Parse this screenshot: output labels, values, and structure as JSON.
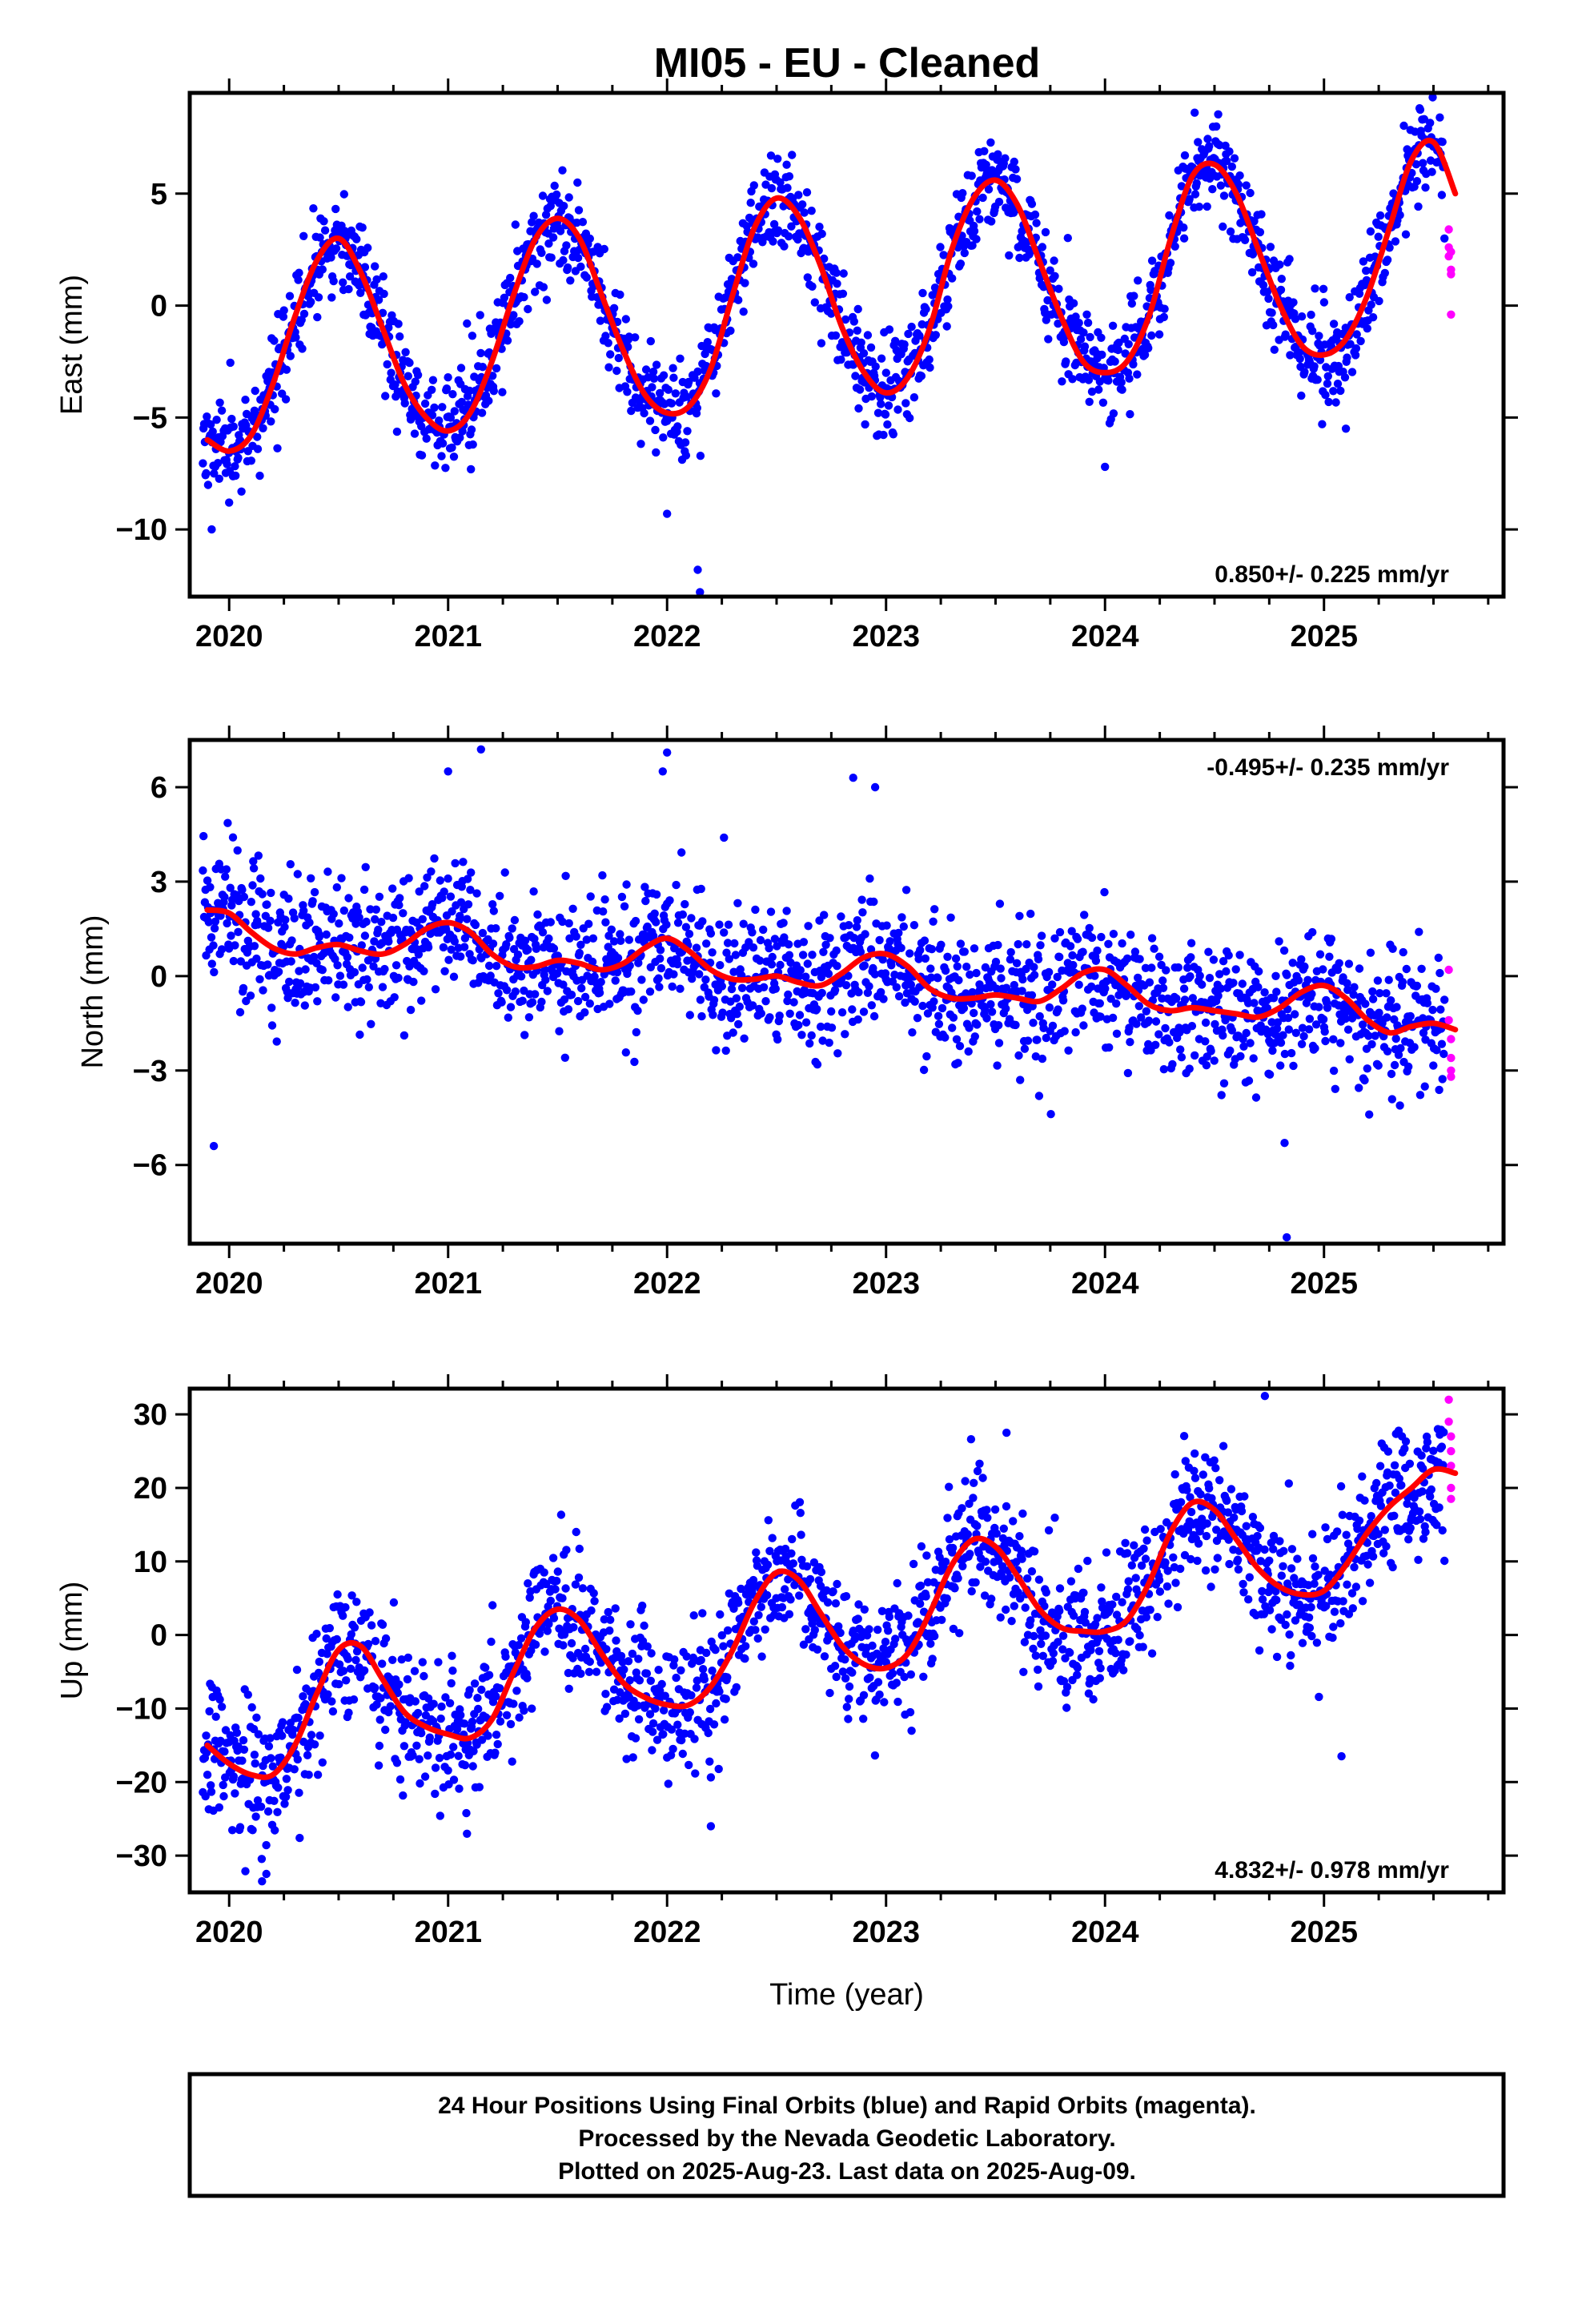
{
  "figure": {
    "title": "MI05  - EU - Cleaned"
  },
  "chart_data": [
    {
      "type": "scatter",
      "panel": "east",
      "ylabel": "East (mm)",
      "xlabel": "",
      "xlim": [
        2019.82,
        2025.82
      ],
      "ylim": [
        -13,
        9.5
      ],
      "xticks": [
        "2020",
        "2021",
        "2022",
        "2023",
        "2024",
        "2025"
      ],
      "yticks": [
        {
          "v": 5,
          "label": "5"
        },
        {
          "v": 0,
          "label": "0"
        },
        {
          "v": -5,
          "label": "−5"
        },
        {
          "v": -10,
          "label": "−10"
        }
      ],
      "rate_label": "0.850+/- 0.225 mm/yr",
      "rate_position": "bottom-right",
      "model": {
        "t": [
          2019.9,
          2020.0,
          2020.1,
          2020.2,
          2020.3,
          2020.4,
          2020.5,
          2020.6,
          2020.7,
          2020.8,
          2020.9,
          2021.0,
          2021.1,
          2021.2,
          2021.3,
          2021.4,
          2021.5,
          2021.6,
          2021.7,
          2021.8,
          2021.9,
          2022.0,
          2022.1,
          2022.2,
          2022.3,
          2022.4,
          2022.5,
          2022.6,
          2022.7,
          2022.8,
          2022.9,
          2023.0,
          2023.1,
          2023.2,
          2023.3,
          2023.4,
          2023.5,
          2023.6,
          2023.7,
          2023.8,
          2023.9,
          2024.0,
          2024.1,
          2024.2,
          2024.3,
          2024.4,
          2024.5,
          2024.6,
          2024.7,
          2024.8,
          2024.9,
          2025.0,
          2025.1,
          2025.2,
          2025.3,
          2025.4,
          2025.5,
          2025.6
        ],
        "v": [
          -6.0,
          -6.5,
          -5.8,
          -3.5,
          -0.5,
          2.0,
          3.0,
          1.5,
          -1.0,
          -3.5,
          -5.0,
          -5.6,
          -4.8,
          -2.5,
          0.5,
          3.0,
          3.9,
          3.0,
          0.5,
          -2.0,
          -4.0,
          -4.8,
          -4.5,
          -2.8,
          0.5,
          3.5,
          4.8,
          4.0,
          1.8,
          -1.0,
          -3.0,
          -3.9,
          -3.2,
          -1.0,
          2.5,
          4.8,
          5.6,
          4.5,
          2.0,
          -0.5,
          -2.5,
          -3.0,
          -2.5,
          -0.5,
          3.0,
          5.8,
          6.3,
          5.0,
          2.5,
          0.0,
          -1.8,
          -2.2,
          -1.5,
          0.5,
          3.5,
          6.5,
          7.3,
          5.0
        ]
      },
      "series": [
        {
          "name": "Final Orbits (blue)",
          "color": "#0000ff",
          "generator": {
            "seed": 11,
            "n": 1900,
            "t0": 2019.88,
            "t1": 2025.55,
            "noise": 1.1
          }
        },
        {
          "name": "Rapid Orbits (magenta)",
          "color": "#ff00ff",
          "t": [
            2025.57,
            2025.57,
            2025.57,
            2025.58,
            2025.58,
            2025.58,
            2025.58
          ],
          "v": [
            3.4,
            2.6,
            2.2,
            1.6,
            1.4,
            -0.4,
            2.4
          ]
        }
      ],
      "outliers": {
        "t": [
          2019.92,
          2022.15,
          2022.14,
          2024.0,
          2025.1,
          2022.0,
          2020.0
        ],
        "v": [
          -10.0,
          -12.8,
          -11.8,
          -7.2,
          -5.5,
          -9.3,
          -8.8
        ]
      }
    },
    {
      "type": "scatter",
      "panel": "north",
      "ylabel": "North (mm)",
      "xlabel": "",
      "xlim": [
        2019.82,
        2025.82
      ],
      "ylim": [
        -8.5,
        7.5
      ],
      "xticks": [
        "2020",
        "2021",
        "2022",
        "2023",
        "2024",
        "2025"
      ],
      "yticks": [
        {
          "v": 6,
          "label": "6"
        },
        {
          "v": 3,
          "label": "3"
        },
        {
          "v": 0,
          "label": "0"
        },
        {
          "v": -3,
          "label": "−3"
        },
        {
          "v": -6,
          "label": "−6"
        }
      ],
      "rate_label": "-0.495+/- 0.235 mm/yr",
      "rate_position": "top-right",
      "model": {
        "t": [
          2019.9,
          2020.0,
          2020.1,
          2020.2,
          2020.3,
          2020.4,
          2020.5,
          2020.6,
          2020.7,
          2020.8,
          2020.9,
          2021.0,
          2021.1,
          2021.2,
          2021.3,
          2021.4,
          2021.5,
          2021.6,
          2021.7,
          2021.8,
          2021.9,
          2022.0,
          2022.1,
          2022.2,
          2022.3,
          2022.4,
          2022.5,
          2022.6,
          2022.7,
          2022.8,
          2022.9,
          2023.0,
          2023.1,
          2023.2,
          2023.3,
          2023.4,
          2023.5,
          2023.6,
          2023.7,
          2023.8,
          2023.9,
          2024.0,
          2024.1,
          2024.2,
          2024.3,
          2024.4,
          2024.5,
          2024.6,
          2024.7,
          2024.8,
          2024.9,
          2025.0,
          2025.1,
          2025.2,
          2025.3,
          2025.4,
          2025.5,
          2025.6
        ],
        "v": [
          2.1,
          2.0,
          1.4,
          0.9,
          0.7,
          0.9,
          1.0,
          0.8,
          0.7,
          1.0,
          1.5,
          1.7,
          1.4,
          0.7,
          0.3,
          0.3,
          0.5,
          0.4,
          0.2,
          0.4,
          0.9,
          1.2,
          0.8,
          0.2,
          -0.1,
          -0.1,
          0.0,
          -0.2,
          -0.3,
          0.1,
          0.6,
          0.7,
          0.3,
          -0.4,
          -0.7,
          -0.7,
          -0.6,
          -0.7,
          -0.8,
          -0.4,
          0.1,
          0.2,
          -0.3,
          -0.9,
          -1.1,
          -1.0,
          -1.1,
          -1.2,
          -1.3,
          -1.0,
          -0.5,
          -0.3,
          -0.7,
          -1.4,
          -1.8,
          -1.6,
          -1.5,
          -1.7
        ]
      },
      "series": [
        {
          "name": "Final Orbits (blue)",
          "color": "#0000ff",
          "generator": {
            "seed": 22,
            "n": 1900,
            "t0": 2019.88,
            "t1": 2025.55,
            "noise": 1.05
          }
        },
        {
          "name": "Rapid Orbits (magenta)",
          "color": "#ff00ff",
          "t": [
            2025.57,
            2025.57,
            2025.58,
            2025.58,
            2025.58,
            2025.58
          ],
          "v": [
            0.2,
            -1.4,
            -2.0,
            -2.6,
            -3.0,
            -3.2
          ]
        }
      ],
      "outliers": {
        "t": [
          2019.93,
          2021.0,
          2021.15,
          2021.98,
          2022.0,
          2022.85,
          2022.95,
          2024.82,
          2024.83,
          2022.26
        ],
        "v": [
          -5.4,
          6.5,
          7.2,
          6.5,
          7.1,
          6.3,
          6.0,
          -5.3,
          -8.3,
          4.4
        ]
      }
    },
    {
      "type": "scatter",
      "panel": "up",
      "ylabel": "Up (mm)",
      "xlabel": "Time (year)",
      "xlim": [
        2019.82,
        2025.82
      ],
      "ylim": [
        -35,
        33.5
      ],
      "xticks": [
        "2020",
        "2021",
        "2022",
        "2023",
        "2024",
        "2025"
      ],
      "yticks": [
        {
          "v": 30,
          "label": "30"
        },
        {
          "v": 20,
          "label": "20"
        },
        {
          "v": 10,
          "label": "10"
        },
        {
          "v": 0,
          "label": "0"
        },
        {
          "v": -10,
          "label": "−10"
        },
        {
          "v": -20,
          "label": "−20"
        },
        {
          "v": -30,
          "label": "−30"
        }
      ],
      "rate_label": "4.832+/- 0.978 mm/yr",
      "rate_position": "bottom-right",
      "model": {
        "t": [
          2019.9,
          2020.0,
          2020.1,
          2020.2,
          2020.3,
          2020.4,
          2020.5,
          2020.6,
          2020.7,
          2020.8,
          2020.9,
          2021.0,
          2021.1,
          2021.2,
          2021.3,
          2021.4,
          2021.5,
          2021.6,
          2021.7,
          2021.8,
          2021.9,
          2022.0,
          2022.1,
          2022.2,
          2022.3,
          2022.4,
          2022.5,
          2022.6,
          2022.7,
          2022.8,
          2022.9,
          2023.0,
          2023.1,
          2023.2,
          2023.3,
          2023.4,
          2023.5,
          2023.6,
          2023.7,
          2023.8,
          2023.9,
          2024.0,
          2024.1,
          2024.2,
          2024.3,
          2024.4,
          2024.5,
          2024.6,
          2024.7,
          2024.8,
          2024.9,
          2025.0,
          2025.1,
          2025.2,
          2025.3,
          2025.4,
          2025.5,
          2025.6
        ],
        "v": [
          -15,
          -17.5,
          -19,
          -19,
          -15,
          -8,
          -2,
          -1.5,
          -6,
          -10.5,
          -12.5,
          -13.5,
          -14,
          -11.5,
          -5,
          1,
          3.5,
          2,
          -2.5,
          -6.5,
          -8.5,
          -9.5,
          -9.5,
          -7,
          -2,
          4.5,
          8.5,
          7.5,
          3,
          -1.5,
          -4,
          -4.5,
          -2.5,
          3,
          9.5,
          13,
          12,
          8,
          3.5,
          1.0,
          0.5,
          0.5,
          2,
          7,
          14,
          18,
          17,
          13,
          9,
          6.5,
          5.5,
          6.0,
          9.5,
          14,
          17.5,
          20,
          22.5,
          22
        ]
      },
      "series": [
        {
          "name": "Final Orbits (blue)",
          "color": "#0000ff",
          "generator": {
            "seed": 33,
            "n": 1900,
            "t0": 2019.88,
            "t1": 2025.55,
            "noise": 4.6
          }
        },
        {
          "name": "Rapid Orbits (magenta)",
          "color": "#ff00ff",
          "t": [
            2025.57,
            2025.57,
            2025.58,
            2025.58,
            2025.58,
            2025.58,
            2025.58
          ],
          "v": [
            32,
            29,
            27,
            25,
            23,
            20,
            18.5
          ]
        }
      ],
      "outliers": {
        "t": [
          2020.15,
          2020.17,
          2024.73,
          2025.08,
          2022.2,
          2023.55
        ],
        "v": [
          -33.5,
          -32.5,
          32.5,
          -16.5,
          -26,
          27.5
        ]
      }
    }
  ],
  "caption": {
    "line1": "24 Hour Positions Using Final Orbits (blue) and Rapid Orbits (magenta).",
    "line2": "Processed by the Nevada Geodetic Laboratory.",
    "line3": "Plotted on 2025-Aug-23. Last data on 2025-Aug-09."
  },
  "colors": {
    "model": "#ff0000",
    "final": "#0000ff",
    "rapid": "#ff00ff",
    "frame": "#000000"
  }
}
